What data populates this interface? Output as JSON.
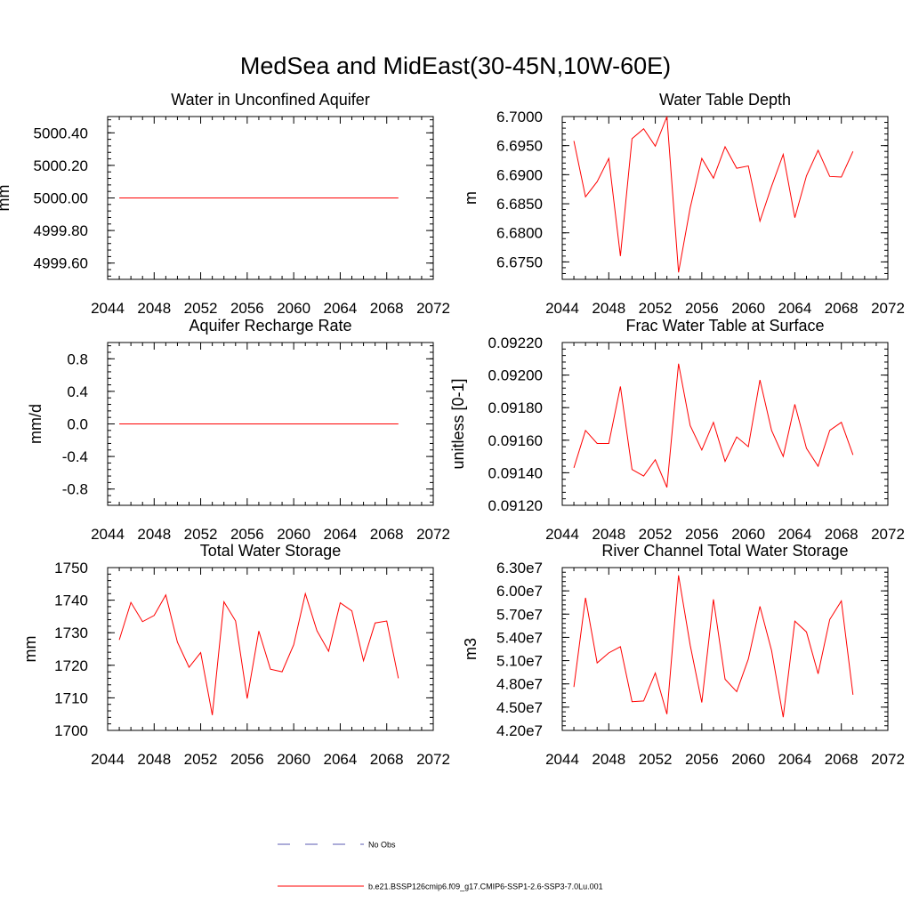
{
  "figure": {
    "title": "MedSea and MidEast(30-45N,10W-60E)"
  },
  "chart_data": [
    {
      "type": "line",
      "title": "Water in Unconfined Aquifer",
      "xlabel": "",
      "ylabel": "mm",
      "xlim": [
        2044,
        2072
      ],
      "ylim": [
        4999.5,
        5000.5
      ],
      "xticks": [
        2044,
        2048,
        2052,
        2056,
        2060,
        2064,
        2068,
        2072
      ],
      "xtick_labels": [
        "2044",
        "2048",
        "2052",
        "2056",
        "2060",
        "2064",
        "2068",
        "2072"
      ],
      "yticks": [
        4999.6,
        4999.8,
        5000.0,
        5000.2,
        5000.4
      ],
      "ytick_labels": [
        "4999.60",
        "4999.80",
        "5000.00",
        "5000.20",
        "5000.40"
      ],
      "x": [
        2045,
        2046,
        2047,
        2048,
        2049,
        2050,
        2051,
        2052,
        2053,
        2054,
        2055,
        2056,
        2057,
        2058,
        2059,
        2060,
        2061,
        2062,
        2063,
        2064,
        2065,
        2066,
        2067,
        2068,
        2069
      ],
      "series": [
        {
          "color": "#ff0000",
          "values": [
            5000,
            5000,
            5000,
            5000,
            5000,
            5000,
            5000,
            5000,
            5000,
            5000,
            5000,
            5000,
            5000,
            5000,
            5000,
            5000,
            5000,
            5000,
            5000,
            5000,
            5000,
            5000,
            5000,
            5000,
            5000
          ]
        }
      ]
    },
    {
      "type": "line",
      "title": "Water Table Depth",
      "xlabel": "",
      "ylabel": "m",
      "xlim": [
        2044,
        2072
      ],
      "ylim": [
        6.672,
        6.7
      ],
      "xticks": [
        2044,
        2048,
        2052,
        2056,
        2060,
        2064,
        2068,
        2072
      ],
      "xtick_labels": [
        "2044",
        "2048",
        "2052",
        "2056",
        "2060",
        "2064",
        "2068",
        "2072"
      ],
      "yticks": [
        6.675,
        6.68,
        6.685,
        6.69,
        6.695,
        6.7
      ],
      "ytick_labels": [
        "6.6750",
        "6.6800",
        "6.6850",
        "6.6900",
        "6.6950",
        "6.7000"
      ],
      "x": [
        2045,
        2046,
        2047,
        2048,
        2049,
        2050,
        2051,
        2052,
        2053,
        2054,
        2055,
        2056,
        2057,
        2058,
        2059,
        2060,
        2061,
        2062,
        2063,
        2064,
        2065,
        2066,
        2067,
        2068,
        2069
      ],
      "series": [
        {
          "color": "#ff0000",
          "values": [
            6.6958,
            6.6862,
            6.6888,
            6.6928,
            6.676,
            6.6962,
            6.6979,
            6.6949,
            6.7,
            6.6732,
            6.6843,
            6.6928,
            6.6894,
            6.6948,
            6.6911,
            6.6915,
            6.682,
            6.688,
            6.6935,
            6.6826,
            6.6898,
            6.6942,
            6.6897,
            6.6896,
            6.694
          ]
        }
      ]
    },
    {
      "type": "line",
      "title": "Aquifer Recharge Rate",
      "xlabel": "",
      "ylabel": "mm/d",
      "xlim": [
        2044,
        2072
      ],
      "ylim": [
        -1.0,
        1.0
      ],
      "xticks": [
        2044,
        2048,
        2052,
        2056,
        2060,
        2064,
        2068,
        2072
      ],
      "xtick_labels": [
        "2044",
        "2048",
        "2052",
        "2056",
        "2060",
        "2064",
        "2068",
        "2072"
      ],
      "yticks": [
        -0.8,
        -0.4,
        0.0,
        0.4,
        0.8
      ],
      "ytick_labels": [
        "-0.8",
        "-0.4",
        "0.0",
        "0.4",
        "0.8"
      ],
      "x": [
        2045,
        2046,
        2047,
        2048,
        2049,
        2050,
        2051,
        2052,
        2053,
        2054,
        2055,
        2056,
        2057,
        2058,
        2059,
        2060,
        2061,
        2062,
        2063,
        2064,
        2065,
        2066,
        2067,
        2068,
        2069
      ],
      "series": [
        {
          "color": "#ff0000",
          "values": [
            0,
            0,
            0,
            0,
            0,
            0,
            0,
            0,
            0,
            0,
            0,
            0,
            0,
            0,
            0,
            0,
            0,
            0,
            0,
            0,
            0,
            0,
            0,
            0,
            0
          ]
        }
      ]
    },
    {
      "type": "line",
      "title": "Frac Water Table at Surface",
      "xlabel": "",
      "ylabel": "unitless [0-1]",
      "xlim": [
        2044,
        2072
      ],
      "ylim": [
        0.0912,
        0.0922
      ],
      "xticks": [
        2044,
        2048,
        2052,
        2056,
        2060,
        2064,
        2068,
        2072
      ],
      "xtick_labels": [
        "2044",
        "2048",
        "2052",
        "2056",
        "2060",
        "2064",
        "2068",
        "2072"
      ],
      "yticks": [
        0.0912,
        0.0914,
        0.0916,
        0.0918,
        0.092,
        0.0922
      ],
      "ytick_labels": [
        "0.09120",
        "0.09140",
        "0.09160",
        "0.09180",
        "0.09200",
        "0.09220"
      ],
      "x": [
        2045,
        2046,
        2047,
        2048,
        2049,
        2050,
        2051,
        2052,
        2053,
        2054,
        2055,
        2056,
        2057,
        2058,
        2059,
        2060,
        2061,
        2062,
        2063,
        2064,
        2065,
        2066,
        2067,
        2068,
        2069
      ],
      "series": [
        {
          "color": "#ff0000",
          "values": [
            0.09143,
            0.09166,
            0.09158,
            0.09158,
            0.09193,
            0.09142,
            0.09138,
            0.09148,
            0.09131,
            0.09207,
            0.09169,
            0.09154,
            0.09171,
            0.09147,
            0.09162,
            0.09156,
            0.09197,
            0.09166,
            0.0915,
            0.09182,
            0.09155,
            0.09144,
            0.09166,
            0.09171,
            0.09151
          ]
        }
      ]
    },
    {
      "type": "line",
      "title": "Total Water Storage",
      "xlabel": "",
      "ylabel": "mm",
      "xlim": [
        2044,
        2072
      ],
      "ylim": [
        1700,
        1750
      ],
      "xticks": [
        2044,
        2048,
        2052,
        2056,
        2060,
        2064,
        2068,
        2072
      ],
      "xtick_labels": [
        "2044",
        "2048",
        "2052",
        "2056",
        "2060",
        "2064",
        "2068",
        "2072"
      ],
      "yticks": [
        1700,
        1710,
        1720,
        1730,
        1740,
        1750
      ],
      "ytick_labels": [
        "1700",
        "1710",
        "1720",
        "1730",
        "1740",
        "1750"
      ],
      "x": [
        2045,
        2046,
        2047,
        2048,
        2049,
        2050,
        2051,
        2052,
        2053,
        2054,
        2055,
        2056,
        2057,
        2058,
        2059,
        2060,
        2061,
        2062,
        2063,
        2064,
        2065,
        2066,
        2067,
        2068,
        2069
      ],
      "series": [
        {
          "color": "#ff0000",
          "values": [
            1727.8,
            1739.3,
            1733.4,
            1735.3,
            1741.6,
            1727.1,
            1719.4,
            1723.9,
            1704.7,
            1739.5,
            1733.6,
            1709.8,
            1730.5,
            1718.8,
            1718.0,
            1726.3,
            1742.0,
            1730.6,
            1724.3,
            1739.2,
            1736.7,
            1721.4,
            1733.0,
            1733.6,
            1716.0
          ]
        }
      ]
    },
    {
      "type": "line",
      "title": "River Channel Total Water Storage",
      "xlabel": "",
      "ylabel": "m3",
      "xlim": [
        2044,
        2072
      ],
      "ylim": [
        42000000,
        63000000
      ],
      "xticks": [
        2044,
        2048,
        2052,
        2056,
        2060,
        2064,
        2068,
        2072
      ],
      "xtick_labels": [
        "2044",
        "2048",
        "2052",
        "2056",
        "2060",
        "2064",
        "2068",
        "2072"
      ],
      "yticks": [
        42000000,
        45000000,
        48000000,
        51000000,
        54000000,
        57000000,
        60000000,
        63000000
      ],
      "ytick_labels": [
        "4.20e7",
        "4.50e7",
        "4.80e7",
        "5.10e7",
        "5.40e7",
        "5.70e7",
        "6.00e7",
        "6.30e7"
      ],
      "x": [
        2045,
        2046,
        2047,
        2048,
        2049,
        2050,
        2051,
        2052,
        2053,
        2054,
        2055,
        2056,
        2057,
        2058,
        2059,
        2060,
        2061,
        2062,
        2063,
        2064,
        2065,
        2066,
        2067,
        2068,
        2069
      ],
      "series": [
        {
          "color": "#ff0000",
          "values": [
            47600000,
            59100000,
            50700000,
            52000000,
            52800000,
            45700000,
            45800000,
            49400000,
            44100000,
            62000000,
            53000000,
            45600000,
            58900000,
            48600000,
            47000000,
            51200000,
            58000000,
            52300000,
            43700000,
            56100000,
            54700000,
            49300000,
            56300000,
            58700000,
            46600000
          ]
        }
      ]
    }
  ],
  "legend": {
    "items": [
      {
        "label": "No Obs",
        "color": "#5a5ab0",
        "style": "dashed"
      },
      {
        "label": "b.e21.BSSP126cmip6.f09_g17.CMIP6-SSP1-2.6-SSP3-7.0Lu.001",
        "color": "#ff0000",
        "style": "solid"
      }
    ]
  }
}
